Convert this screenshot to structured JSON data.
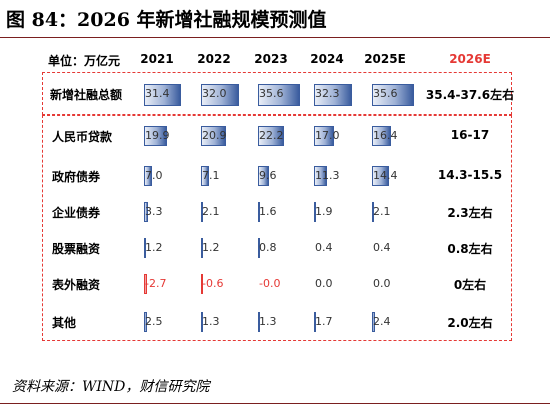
{
  "title": "图 84：2026 年新增社融规模预测值",
  "unit_label": "单位：万亿元",
  "years": [
    "2021",
    "2022",
    "2023",
    "2024",
    "2025E"
  ],
  "forecast_year": "2026E",
  "colors": {
    "bar": "#3a5c9e",
    "negative": "#e53935",
    "box": "#e53935",
    "rule": "#7a1f1f"
  },
  "rows": [
    {
      "label": "新增社融总额",
      "values": [
        "31.4",
        "32.0",
        "35.6",
        "32.3",
        "35.6"
      ],
      "forecast": "35.4-37.6左右"
    },
    {
      "label": "人民币贷款",
      "values": [
        "19.9",
        "20.9",
        "22.2",
        "17.0",
        "16.4"
      ],
      "forecast": "16-17"
    },
    {
      "label": "政府债券",
      "values": [
        "7.0",
        "7.1",
        "9.6",
        "11.3",
        "14.4"
      ],
      "forecast": "14.3-15.5"
    },
    {
      "label": "企业债券",
      "values": [
        "3.3",
        "2.1",
        "1.6",
        "1.9",
        "2.1"
      ],
      "forecast": "2.3左右"
    },
    {
      "label": "股票融资",
      "values": [
        "1.2",
        "1.2",
        "0.8",
        "0.4",
        "0.4"
      ],
      "forecast": "0.8左右"
    },
    {
      "label": "表外融资",
      "values": [
        "-2.7",
        "-0.6",
        "-0.0",
        "0.0",
        "0.0"
      ],
      "forecast": "0左右"
    },
    {
      "label": "其他",
      "values": [
        "2.5",
        "1.3",
        "1.3",
        "1.7",
        "2.4"
      ],
      "forecast": "2.0左右"
    }
  ],
  "source": "资料来源：WIND，财信研究院"
}
